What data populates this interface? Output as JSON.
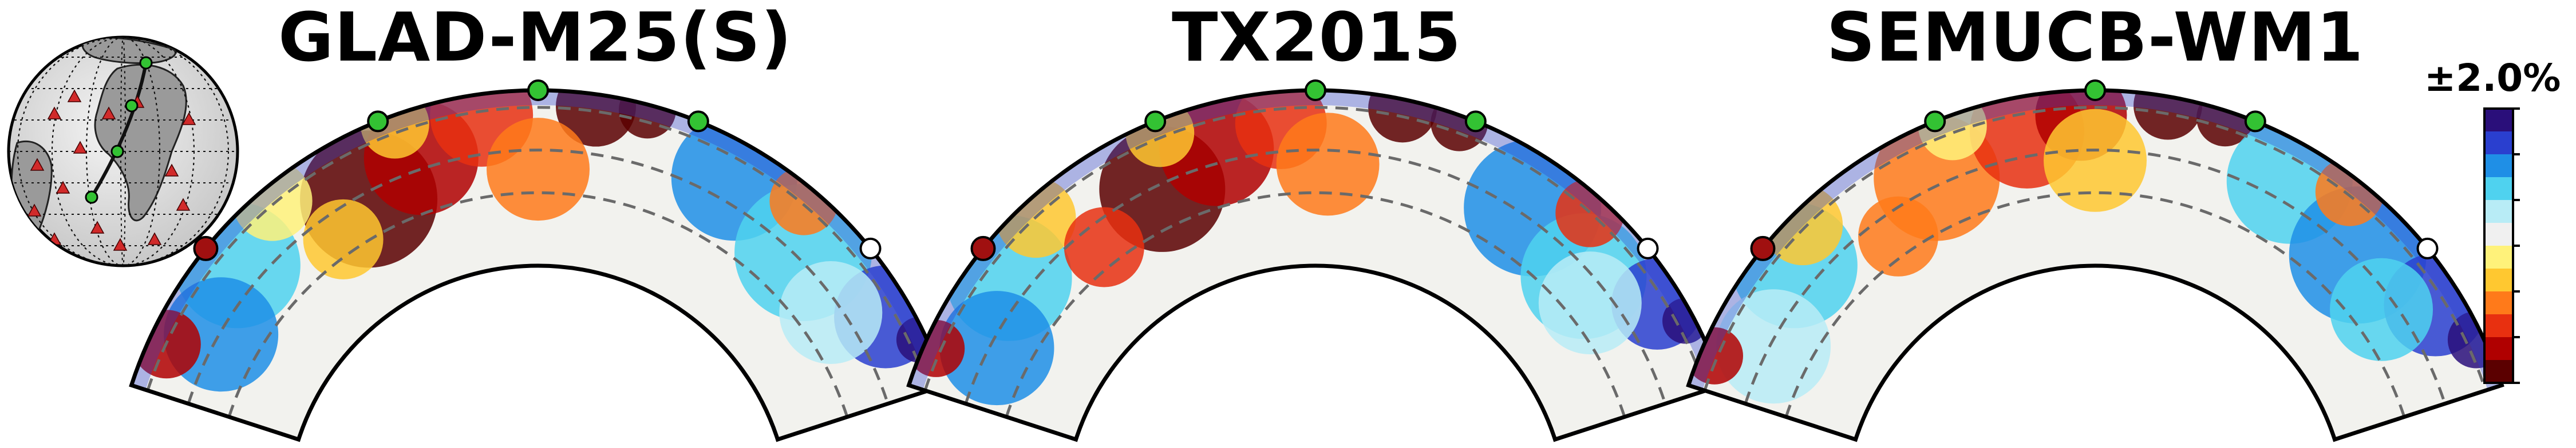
{
  "panels": [
    {
      "title": "GLAD-M25(S)"
    },
    {
      "title": "TX2015"
    },
    {
      "title": "SEMUCB-WM1"
    }
  ],
  "colorbar": {
    "label": "±2.0%",
    "colors": [
      "#5b0000",
      "#b00000",
      "#e83010",
      "#ff7a1a",
      "#ffc830",
      "#fff27a",
      "#f0f0f0",
      "#b8ecf6",
      "#4fd2ef",
      "#1f8fe6",
      "#2a3fcf",
      "#2a0f7a"
    ]
  },
  "colors": {
    "slow": "#7a0a0a",
    "fast": "#23206e",
    "station_green": "#33c233",
    "endpoint_red": "#a01010",
    "endpoint_white": "#ffffff"
  }
}
